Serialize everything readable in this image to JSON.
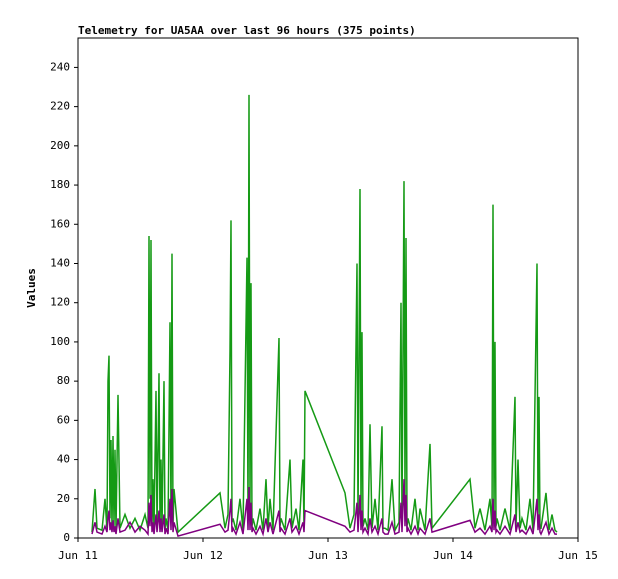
{
  "chart_data": {
    "type": "line",
    "title": "Telemetry for UA5AA over last 96 hours (375 points)",
    "y_label": "Values",
    "xlim": [
      11,
      15
    ],
    "xticks": [
      {
        "value": 11,
        "label": "Jun 11"
      },
      {
        "value": 12,
        "label": "Jun 12"
      },
      {
        "value": 13,
        "label": "Jun 13"
      },
      {
        "value": 14,
        "label": "Jun 14"
      },
      {
        "value": 15,
        "label": "Jun 15"
      }
    ],
    "ylim": [
      0,
      255
    ],
    "yticks": [
      0,
      20,
      40,
      60,
      80,
      100,
      120,
      140,
      160,
      180,
      200,
      220,
      240
    ],
    "grid": false,
    "x": [
      11.112,
      11.136,
      11.152,
      11.192,
      11.216,
      11.232,
      11.24,
      11.248,
      11.256,
      11.264,
      11.272,
      11.28,
      11.288,
      11.296,
      11.304,
      11.32,
      11.336,
      11.376,
      11.416,
      11.456,
      11.496,
      11.536,
      11.56,
      11.568,
      11.576,
      11.584,
      11.592,
      11.6,
      11.608,
      11.624,
      11.632,
      11.648,
      11.656,
      11.664,
      11.672,
      11.688,
      11.696,
      11.704,
      11.72,
      11.736,
      11.744,
      11.752,
      11.76,
      11.768,
      11.8,
      12.136,
      12.176,
      12.2,
      12.216,
      12.224,
      12.232,
      12.24,
      12.264,
      12.296,
      12.32,
      12.352,
      12.36,
      12.368,
      12.376,
      12.384,
      12.392,
      12.4,
      12.424,
      12.456,
      12.48,
      12.504,
      12.52,
      12.536,
      12.56,
      12.608,
      12.616,
      12.624,
      12.656,
      12.696,
      12.712,
      12.744,
      12.768,
      12.8,
      12.808,
      12.816,
      13.136,
      13.176,
      13.208,
      13.232,
      13.24,
      13.256,
      13.264,
      13.272,
      13.28,
      13.296,
      13.32,
      13.336,
      13.352,
      13.376,
      13.4,
      13.432,
      13.44,
      13.456,
      13.48,
      13.512,
      13.536,
      13.568,
      13.584,
      13.592,
      13.608,
      13.616,
      13.624,
      13.632,
      13.64,
      13.664,
      13.696,
      13.72,
      13.736,
      13.776,
      13.816,
      13.832,
      14.136,
      14.176,
      14.216,
      14.256,
      14.296,
      14.312,
      14.32,
      14.328,
      14.336,
      14.344,
      14.352,
      14.376,
      14.416,
      14.456,
      14.496,
      14.504,
      14.52,
      14.536,
      14.552,
      14.584,
      14.616,
      14.64,
      14.672,
      14.68,
      14.688,
      14.696,
      14.704,
      14.744,
      14.768,
      14.792,
      14.816,
      14.832
    ],
    "series": [
      {
        "color": "#159a15",
        "values": [
          3,
          25,
          5,
          4,
          20,
          4,
          80,
          93,
          10,
          50,
          5,
          52,
          6,
          45,
          4,
          73,
          5,
          12,
          5,
          10,
          4,
          12,
          5,
          154,
          20,
          152,
          6,
          30,
          4,
          75,
          5,
          84,
          6,
          40,
          5,
          80,
          4,
          10,
          4,
          110,
          8,
          145,
          6,
          25,
          3,
          23,
          5,
          12,
          95,
          162,
          8,
          10,
          4,
          20,
          4,
          143,
          10,
          226,
          15,
          130,
          6,
          10,
          4,
          15,
          4,
          30,
          5,
          20,
          4,
          102,
          6,
          10,
          4,
          40,
          5,
          15,
          4,
          40,
          5,
          75,
          23,
          5,
          12,
          140,
          8,
          178,
          10,
          105,
          6,
          10,
          4,
          58,
          5,
          20,
          4,
          57,
          5,
          5,
          4,
          30,
          4,
          8,
          120,
          8,
          182,
          20,
          153,
          6,
          10,
          4,
          20,
          4,
          15,
          4,
          48,
          5,
          30,
          5,
          15,
          4,
          20,
          5,
          170,
          10,
          100,
          6,
          10,
          4,
          15,
          4,
          72,
          6,
          40,
          5,
          10,
          4,
          20,
          4,
          140,
          10,
          72,
          5,
          5,
          23,
          4,
          12,
          4,
          3
        ]
      },
      {
        "color": "#800080",
        "values": [
          2,
          8,
          3,
          2,
          6,
          3,
          10,
          14,
          4,
          8,
          3,
          9,
          3,
          6,
          2,
          10,
          3,
          4,
          8,
          3,
          6,
          4,
          2,
          18,
          6,
          22,
          3,
          8,
          2,
          12,
          3,
          14,
          3,
          10,
          3,
          12,
          2,
          5,
          2,
          20,
          4,
          25,
          3,
          8,
          1,
          7,
          3,
          4,
          14,
          20,
          3,
          5,
          2,
          8,
          2,
          20,
          4,
          26,
          4,
          18,
          3,
          5,
          2,
          6,
          2,
          10,
          3,
          8,
          2,
          14,
          3,
          5,
          2,
          10,
          3,
          6,
          2,
          8,
          3,
          14,
          6,
          3,
          4,
          18,
          3,
          22,
          4,
          14,
          3,
          5,
          2,
          10,
          3,
          6,
          2,
          10,
          3,
          2,
          2,
          8,
          2,
          3,
          18,
          3,
          30,
          6,
          22,
          3,
          5,
          2,
          6,
          2,
          5,
          2,
          10,
          3,
          9,
          3,
          5,
          2,
          6,
          3,
          20,
          4,
          14,
          3,
          4,
          2,
          6,
          2,
          12,
          3,
          8,
          3,
          4,
          2,
          6,
          2,
          20,
          4,
          12,
          3,
          2,
          8,
          2,
          5,
          2,
          2
        ]
      }
    ]
  }
}
